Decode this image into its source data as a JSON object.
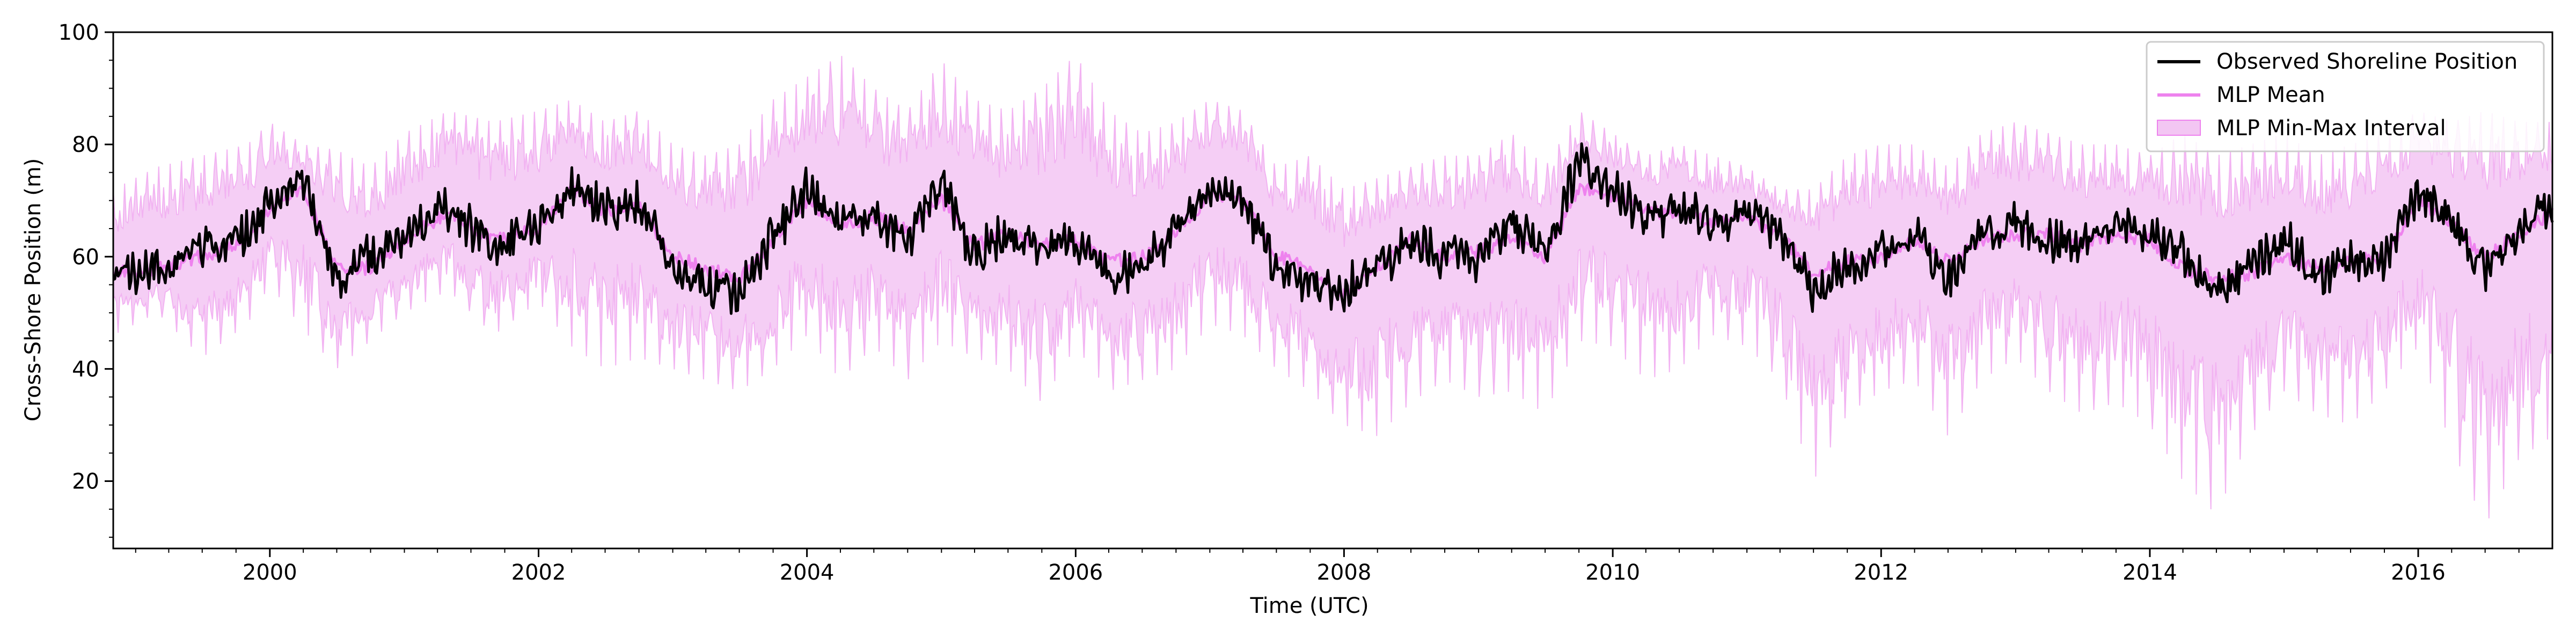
{
  "chart_data": {
    "type": "line",
    "xlabel": "Time (UTC)",
    "ylabel": "Cross-Shore Position (m)",
    "xlim": [
      "1998-11-01",
      "2016-12-31"
    ],
    "ylim": [
      8,
      100
    ],
    "x_ticks": [
      "2000",
      "2002",
      "2004",
      "2006",
      "2008",
      "2010",
      "2012",
      "2014",
      "2016"
    ],
    "y_ticks": [
      "20",
      "40",
      "60",
      "80",
      "100"
    ],
    "legend_position": "top-right",
    "grid": false,
    "colors": {
      "observed": "#000000",
      "mean": "#ee82ee",
      "band": "#f3c6f3",
      "band_edge": "#f2b3f2"
    },
    "legend": [
      {
        "label": "Observed Shoreline Position",
        "kind": "line",
        "color": "#000000"
      },
      {
        "label": "MLP Mean",
        "kind": "line",
        "color": "#ee82ee"
      },
      {
        "label": "MLP Min-Max Interval",
        "kind": "patch",
        "color": "#f3c6f3"
      }
    ],
    "dates": [
      "1998-11-01",
      "1999-03-01",
      "1999-07-01",
      "1999-11-01",
      "2000-01-01",
      "2000-04-01",
      "2000-07-01",
      "2000-10-01",
      "2001-01-01",
      "2001-05-01",
      "2001-09-01",
      "2002-01-01",
      "2002-04-01",
      "2002-07-01",
      "2002-10-01",
      "2003-01-01",
      "2003-04-01",
      "2003-07-01",
      "2003-10-01",
      "2004-01-01",
      "2004-04-01",
      "2004-07-01",
      "2004-10-01",
      "2005-01-01",
      "2005-04-01",
      "2005-07-01",
      "2005-10-01",
      "2006-01-01",
      "2006-04-01",
      "2006-07-01",
      "2006-10-01",
      "2007-01-01",
      "2007-04-01",
      "2007-07-01",
      "2007-10-01",
      "2008-01-01",
      "2008-04-01",
      "2008-07-01",
      "2008-10-01",
      "2009-01-01",
      "2009-04-01",
      "2009-07-01",
      "2009-10-01",
      "2010-01-01",
      "2010-04-01",
      "2010-07-01",
      "2010-10-01",
      "2011-01-01",
      "2011-04-01",
      "2011-07-01",
      "2011-10-01",
      "2012-01-01",
      "2012-04-01",
      "2012-07-01",
      "2012-10-01",
      "2013-01-01",
      "2013-04-01",
      "2013-07-01",
      "2013-10-01",
      "2014-01-01",
      "2014-04-01",
      "2014-07-01",
      "2014-10-01",
      "2015-01-01",
      "2015-04-01",
      "2015-07-01",
      "2015-10-01",
      "2016-01-01",
      "2016-04-01",
      "2016-07-01",
      "2016-10-01",
      "2016-12-31"
    ],
    "series": [
      {
        "name": "Observed Shoreline Position",
        "values": [
          56,
          58,
          62,
          64,
          70,
          74,
          56,
          60,
          63,
          69,
          62,
          65,
          73,
          68,
          70,
          58,
          55,
          54,
          64,
          72,
          66,
          68,
          63,
          73,
          60,
          64,
          62,
          63,
          57,
          58,
          65,
          73,
          70,
          58,
          56,
          54,
          58,
          63,
          60,
          60,
          66,
          61,
          77,
          72,
          66,
          69,
          66,
          68,
          64,
          54,
          58,
          61,
          64,
          56,
          64,
          66,
          63,
          62,
          66,
          64,
          60,
          53,
          58,
          63,
          56,
          59,
          60,
          72,
          66,
          58,
          64,
          70
        ]
      },
      {
        "name": "MLP Mean",
        "values": [
          57,
          58,
          60,
          63,
          69,
          72,
          58,
          58,
          63,
          68,
          63,
          65,
          72,
          68,
          69,
          60,
          58,
          56,
          63,
          70,
          66,
          67,
          65,
          70,
          62,
          64,
          62,
          63,
          59,
          60,
          64,
          71,
          70,
          60,
          58,
          53,
          58,
          63,
          60,
          61,
          63,
          60,
          72,
          71,
          68,
          68,
          66,
          67,
          64,
          57,
          59,
          60,
          63,
          59,
          63,
          64,
          64,
          62,
          64,
          63,
          58,
          56,
          57,
          60,
          58,
          59,
          60,
          70,
          66,
          60,
          64,
          68
        ]
      }
    ],
    "interval": {
      "name": "MLP Min-Max Interval",
      "min": [
        46,
        50,
        42,
        48,
        55,
        47,
        40,
        45,
        50,
        54,
        46,
        52,
        44,
        40,
        42,
        40,
        38,
        36,
        40,
        46,
        38,
        44,
        38,
        45,
        42,
        40,
        34,
        44,
        36,
        38,
        40,
        48,
        46,
        40,
        36,
        30,
        28,
        34,
        38,
        35,
        36,
        32,
        45,
        44,
        38,
        40,
        46,
        44,
        38,
        20,
        32,
        36,
        38,
        28,
        38,
        42,
        36,
        32,
        34,
        30,
        20,
        14,
        28,
        36,
        32,
        30,
        36,
        44,
        26,
        12,
        24,
        28
      ],
      "max": [
        72,
        76,
        78,
        80,
        84,
        80,
        79,
        76,
        82,
        86,
        84,
        86,
        88,
        84,
        86,
        80,
        78,
        80,
        88,
        92,
        96,
        90,
        86,
        95,
        88,
        86,
        90,
        96,
        86,
        82,
        84,
        88,
        86,
        76,
        78,
        72,
        74,
        76,
        78,
        78,
        82,
        76,
        86,
        82,
        78,
        80,
        78,
        76,
        72,
        72,
        78,
        80,
        80,
        76,
        82,
        84,
        82,
        80,
        80,
        78,
        82,
        78,
        80,
        82,
        78,
        80,
        82,
        86,
        84,
        86,
        84,
        84
      ]
    }
  }
}
